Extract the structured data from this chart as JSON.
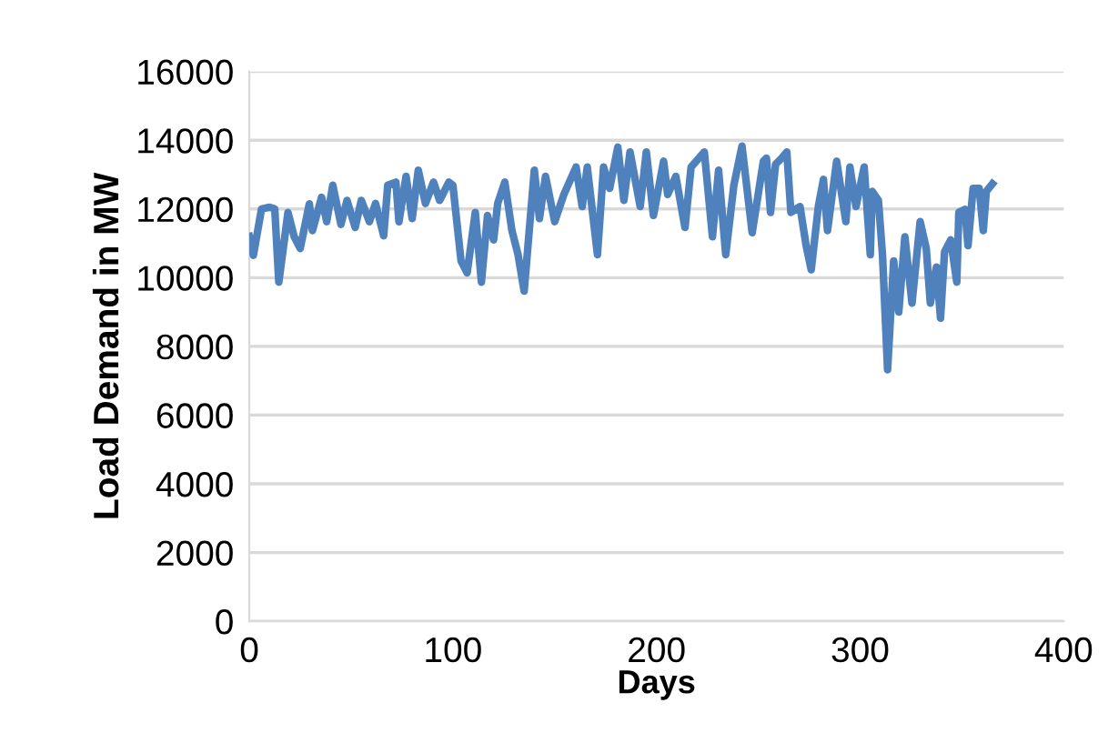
{
  "chart_data": {
    "type": "line",
    "xlabel": "Days",
    "ylabel": "Load Demand in MW",
    "xlim": [
      0,
      400
    ],
    "xticks": [
      0,
      100,
      200,
      300,
      400
    ],
    "ylim": [
      0,
      16000
    ],
    "yticks": [
      0,
      2000,
      4000,
      6000,
      8000,
      10000,
      12000,
      14000,
      16000
    ],
    "grid": "y",
    "legend": false,
    "marker": "none",
    "line_style": "solid",
    "series": [
      {
        "color": "#4f81bd",
        "x": [
          0,
          2,
          6,
          10,
          12.5,
          14.5,
          19,
          22,
          25,
          29.5,
          31,
          35.5,
          38,
          41,
          45,
          48,
          52,
          55,
          59,
          62,
          66,
          68,
          72,
          73.5,
          77,
          80,
          83,
          86.5,
          90.5,
          93.5,
          98,
          100,
          104,
          107,
          111,
          114,
          117,
          120,
          122,
          125.5,
          129,
          132,
          135,
          140,
          142.5,
          145.5,
          150,
          154.5,
          160.5,
          163.5,
          166,
          171,
          174,
          177,
          181,
          184,
          187,
          192,
          195,
          198.5,
          203.5,
          205.5,
          209.5,
          214,
          217,
          223.5,
          227.5,
          230.5,
          234,
          238,
          242,
          247,
          252.5,
          254,
          256,
          258.5,
          261.5,
          264,
          266,
          270.5,
          273.5,
          276,
          279.5,
          282,
          284,
          288.5,
          293,
          295,
          298,
          302,
          305,
          306,
          309,
          311,
          313.5,
          316.5,
          319,
          322,
          325.5,
          329.5,
          332.5,
          334.5,
          337.5,
          339.5,
          341.5,
          344.5,
          347.5,
          348.5,
          351.5,
          353,
          355.5,
          358.5,
          360.5,
          362,
          365
        ],
        "values": [
          11200,
          10650,
          12000,
          12050,
          12000,
          9870,
          11900,
          11200,
          10850,
          12150,
          11370,
          12340,
          11630,
          12690,
          11550,
          12250,
          11460,
          12250,
          11630,
          12160,
          11220,
          12690,
          12780,
          11630,
          12950,
          11720,
          13130,
          12160,
          12780,
          12250,
          12780,
          12690,
          10490,
          10140,
          11900,
          9870,
          11810,
          11100,
          12160,
          12780,
          11370,
          10670,
          9610,
          13130,
          11720,
          12950,
          11630,
          12420,
          13220,
          12070,
          13220,
          10670,
          13220,
          12600,
          13800,
          12250,
          13660,
          12070,
          13660,
          11810,
          13390,
          12420,
          12950,
          11460,
          13220,
          13660,
          11190,
          13130,
          10670,
          12690,
          13830,
          11310,
          13390,
          13480,
          11900,
          13300,
          13480,
          13660,
          11900,
          12070,
          10930,
          10230,
          12070,
          12860,
          11370,
          13390,
          11630,
          13220,
          12070,
          13220,
          10670,
          12510,
          12250,
          10670,
          7320,
          10490,
          9000,
          11190,
          9260,
          11630,
          10850,
          9260,
          10310,
          8820,
          10750,
          11100,
          9870,
          11900,
          11990,
          10930,
          12600,
          12600,
          11370,
          12510,
          12730
        ]
      }
    ]
  }
}
